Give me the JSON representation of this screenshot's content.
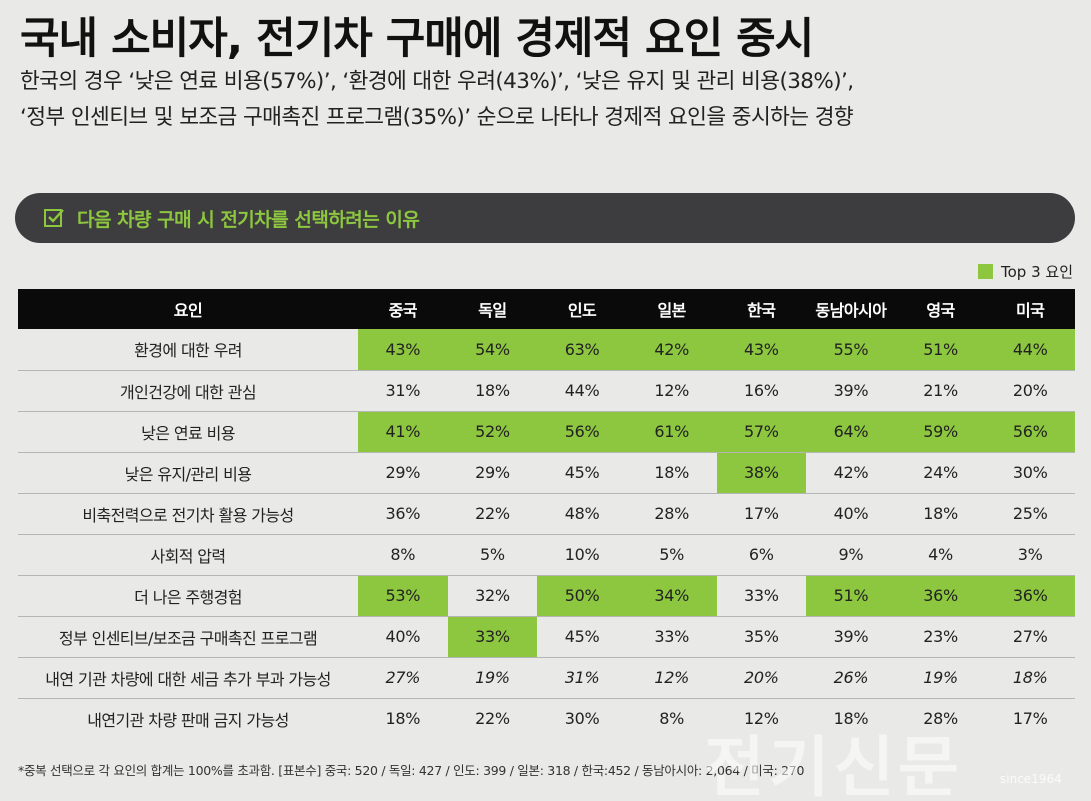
{
  "title": "국내 소비자, 전기차 구매에 경제적 요인 중시",
  "subtitle_lines": [
    "한국의 경우 ‘낮은 연료 비용(57%)’, ‘환경에 대한 우려(43%)’, ‘낮은 유지 및 관리 비용(38%)’,",
    "‘정부 인센티브 및 보조금 구매촉진 프로그램(35%)’ 순으로 나타나 경제적 요인을 중시하는 경향"
  ],
  "banner": {
    "text": "다음 차량 구매 시 전기차를 선택하려는 이유",
    "icon": "checkbox-icon"
  },
  "legend": {
    "label": "Top 3 요인",
    "color": "#8dc63f"
  },
  "colors": {
    "highlight": "#8dc63f",
    "header_bg": "#0a0a0a",
    "banner_bg": "#3d3d3f"
  },
  "chart_data": {
    "type": "table",
    "header_label": "요인",
    "columns": [
      "중국",
      "독일",
      "인도",
      "일본",
      "한국",
      "동남아시아",
      "영국",
      "미국"
    ],
    "rows": [
      {
        "factor": "환경에 대한 우려",
        "values": [
          "43%",
          "54%",
          "63%",
          "42%",
          "43%",
          "55%",
          "51%",
          "44%"
        ],
        "top3": [
          true,
          true,
          true,
          true,
          true,
          true,
          true,
          true
        ],
        "italic": false
      },
      {
        "factor": "개인건강에 대한 관심",
        "values": [
          "31%",
          "18%",
          "44%",
          "12%",
          "16%",
          "39%",
          "21%",
          "20%"
        ],
        "top3": [
          false,
          false,
          false,
          false,
          false,
          false,
          false,
          false
        ],
        "italic": false
      },
      {
        "factor": "낮은 연료 비용",
        "values": [
          "41%",
          "52%",
          "56%",
          "61%",
          "57%",
          "64%",
          "59%",
          "56%"
        ],
        "top3": [
          true,
          true,
          true,
          true,
          true,
          true,
          true,
          true
        ],
        "italic": false
      },
      {
        "factor": "낮은 유지/관리 비용",
        "values": [
          "29%",
          "29%",
          "45%",
          "18%",
          "38%",
          "42%",
          "24%",
          "30%"
        ],
        "top3": [
          false,
          false,
          false,
          false,
          true,
          false,
          false,
          false
        ],
        "italic": false
      },
      {
        "factor": "비축전력으로 전기차 활용 가능성",
        "values": [
          "36%",
          "22%",
          "48%",
          "28%",
          "17%",
          "40%",
          "18%",
          "25%"
        ],
        "top3": [
          false,
          false,
          false,
          false,
          false,
          false,
          false,
          false
        ],
        "italic": false
      },
      {
        "factor": "사회적 압력",
        "values": [
          "8%",
          "5%",
          "10%",
          "5%",
          "6%",
          "9%",
          "4%",
          "3%"
        ],
        "top3": [
          false,
          false,
          false,
          false,
          false,
          false,
          false,
          false
        ],
        "italic": false
      },
      {
        "factor": "더 나은 주행경험",
        "values": [
          "53%",
          "32%",
          "50%",
          "34%",
          "33%",
          "51%",
          "36%",
          "36%"
        ],
        "top3": [
          true,
          false,
          true,
          true,
          false,
          true,
          true,
          true
        ],
        "italic": false
      },
      {
        "factor": "정부 인센티브/보조금 구매촉진 프로그램",
        "values": [
          "40%",
          "33%",
          "45%",
          "33%",
          "35%",
          "39%",
          "23%",
          "27%"
        ],
        "top3": [
          false,
          true,
          false,
          false,
          false,
          false,
          false,
          false
        ],
        "italic": false
      },
      {
        "factor": "내연 기관 차량에 대한 세금 추가 부과 가능성",
        "values": [
          "27%",
          "19%",
          "31%",
          "12%",
          "20%",
          "26%",
          "19%",
          "18%"
        ],
        "top3": [
          false,
          false,
          false,
          false,
          false,
          false,
          false,
          false
        ],
        "italic": true
      },
      {
        "factor": "내연기관 차량 판매 금지 가능성",
        "values": [
          "18%",
          "22%",
          "30%",
          "8%",
          "12%",
          "18%",
          "28%",
          "17%"
        ],
        "top3": [
          false,
          false,
          false,
          false,
          false,
          false,
          false,
          false
        ],
        "italic": false
      }
    ]
  },
  "footnote": "*중복 선택으로 각 요인의 합계는 100%를 초과함. [표본수] 중국: 520 / 독일: 427 / 인도: 399 / 일본: 318 / 한국:452 / 동남아시아: 2,064 / 미국: 270",
  "watermark": {
    "text": "전기신문",
    "since": "since1964"
  }
}
